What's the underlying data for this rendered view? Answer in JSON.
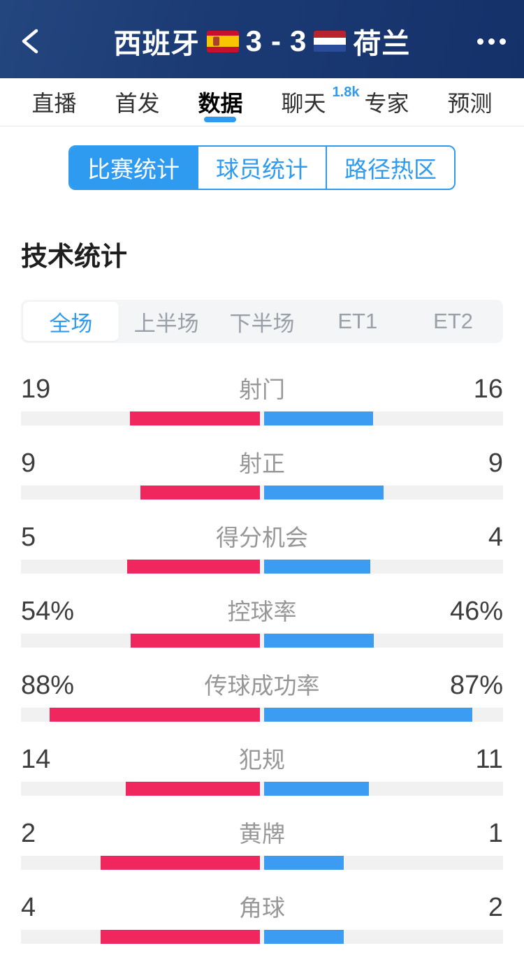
{
  "header": {
    "home_team": "西班牙",
    "away_team": "荷兰",
    "home_score": "3",
    "score_separator": "-",
    "away_score": "3",
    "back_icon": "chevron-left",
    "more_icon": "ellipsis-horizontal",
    "bg_color": "#1b3a74"
  },
  "flags": {
    "spain": {
      "red": "#c8102e",
      "yellow": "#f7c600"
    },
    "netherlands": {
      "red": "#b8232f",
      "white": "#ffffff",
      "blue": "#2a4d9b"
    }
  },
  "nav_tabs": [
    {
      "key": "live",
      "label": "直播",
      "active": false
    },
    {
      "key": "lineup",
      "label": "首发",
      "active": false
    },
    {
      "key": "data",
      "label": "数据",
      "active": true
    },
    {
      "key": "chat",
      "label": "聊天",
      "active": false,
      "badge": "1.8k"
    },
    {
      "key": "experts",
      "label": "专家",
      "active": false
    },
    {
      "key": "predict",
      "label": "预测",
      "active": false
    }
  ],
  "stat_type_tabs": [
    {
      "key": "match-stats",
      "label": "比赛统计",
      "active": true
    },
    {
      "key": "player-stats",
      "label": "球员统计",
      "active": false
    },
    {
      "key": "heat-zones",
      "label": "路径热区",
      "active": false
    }
  ],
  "section_title": "技术统计",
  "period_tabs": [
    {
      "key": "full-match",
      "label": "全场",
      "active": true
    },
    {
      "key": "first-half",
      "label": "上半场",
      "active": false
    },
    {
      "key": "second-half",
      "label": "下半场",
      "active": false
    },
    {
      "key": "et1",
      "label": "ET1",
      "active": false
    },
    {
      "key": "et2",
      "label": "ET2",
      "active": false
    }
  ],
  "ui_colors": {
    "accent_blue": "#2f9bf0",
    "home_bar": "#f0275f",
    "away_bar": "#3b9cf1",
    "track_gray": "#f1f1f2"
  },
  "chart_data": {
    "type": "bar",
    "title": "技术统计",
    "categories": [
      "射门",
      "射正",
      "得分机会",
      "控球率",
      "传球成功率",
      "犯规",
      "黄牌",
      "角球"
    ],
    "series": [
      {
        "name": "西班牙",
        "values": [
          19,
          9,
          5,
          54,
          88,
          14,
          2,
          4
        ]
      },
      {
        "name": "荷兰",
        "values": [
          16,
          9,
          4,
          46,
          87,
          11,
          1,
          2
        ]
      }
    ]
  },
  "stats_rows": [
    {
      "key": "shots",
      "label": "射门",
      "home": "19",
      "away": "16",
      "home_val": 19,
      "away_val": 16,
      "percent": false
    },
    {
      "key": "shots-on-target",
      "label": "射正",
      "home": "9",
      "away": "9",
      "home_val": 9,
      "away_val": 9,
      "percent": false
    },
    {
      "key": "big-chances",
      "label": "得分机会",
      "home": "5",
      "away": "4",
      "home_val": 5,
      "away_val": 4,
      "percent": false
    },
    {
      "key": "possession",
      "label": "控球率",
      "home": "54%",
      "away": "46%",
      "home_val": 54,
      "away_val": 46,
      "percent": true
    },
    {
      "key": "pass-accuracy",
      "label": "传球成功率",
      "home": "88%",
      "away": "87%",
      "home_val": 88,
      "away_val": 87,
      "percent": true
    },
    {
      "key": "fouls",
      "label": "犯规",
      "home": "14",
      "away": "11",
      "home_val": 14,
      "away_val": 11,
      "percent": false
    },
    {
      "key": "yellow-cards",
      "label": "黄牌",
      "home": "2",
      "away": "1",
      "home_val": 2,
      "away_val": 1,
      "percent": false
    },
    {
      "key": "corners",
      "label": "角球",
      "home": "4",
      "away": "2",
      "home_val": 4,
      "away_val": 2,
      "percent": false
    }
  ]
}
